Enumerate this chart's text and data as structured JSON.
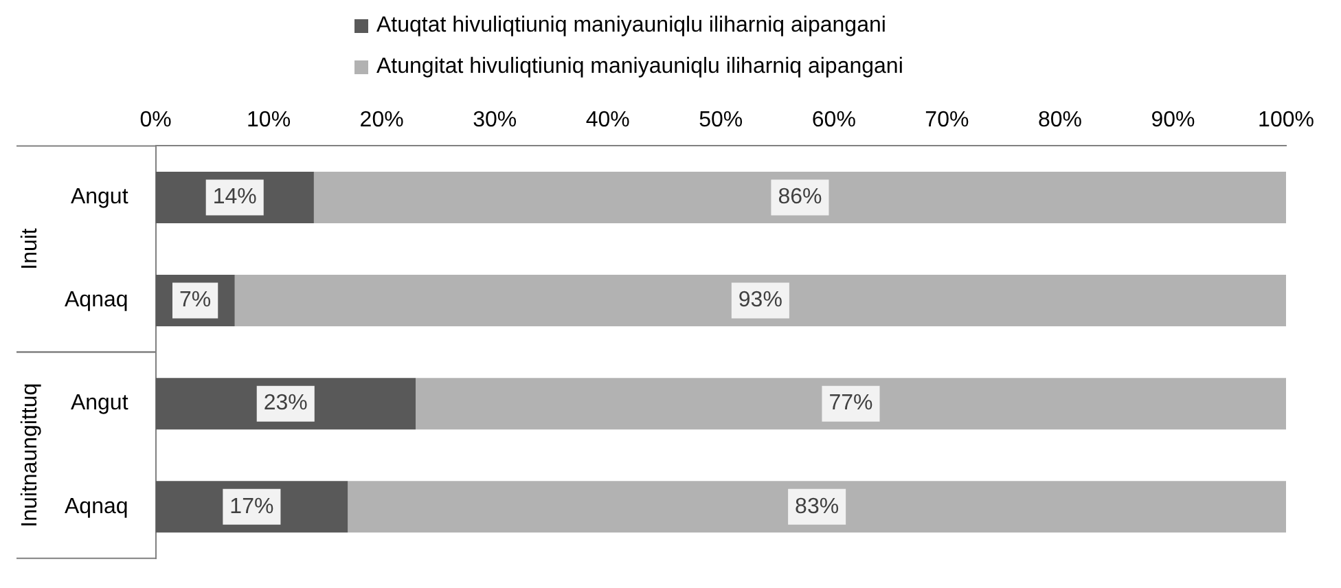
{
  "chart_data": {
    "type": "bar",
    "orientation": "horizontal",
    "stacked": true,
    "categories": [
      "Angut",
      "Aqnaq",
      "Angut",
      "Aqnaq"
    ],
    "annotations": [
      "Inuit",
      "Inuitnaungittuq"
    ],
    "series": [
      {
        "name": "Atuqtat hivuliqtiuniq maniyauniqlu iliharniq aipangani",
        "color": "#595959",
        "values": [
          14,
          7,
          23,
          17
        ],
        "value_labels": [
          "14%",
          "7%",
          "23%",
          "17%"
        ]
      },
      {
        "name": "Atungitat hivuliqtiuniq maniyauniqlu iliharniq aipangani",
        "color": "#b2b2b2",
        "values": [
          86,
          93,
          77,
          83
        ],
        "value_labels": [
          "86%",
          "93%",
          "77%",
          "83%"
        ]
      }
    ],
    "xlim": [
      0,
      100
    ],
    "xticks": [
      {
        "value": 0,
        "label": "0%"
      },
      {
        "value": 10,
        "label": "10%"
      },
      {
        "value": 20,
        "label": "20%"
      },
      {
        "value": 30,
        "label": "30%"
      },
      {
        "value": 40,
        "label": "40%"
      },
      {
        "value": 50,
        "label": "50%"
      },
      {
        "value": 60,
        "label": "60%"
      },
      {
        "value": 70,
        "label": "70%"
      },
      {
        "value": 80,
        "label": "80%"
      },
      {
        "value": 90,
        "label": "90%"
      },
      {
        "value": 100,
        "label": "100%"
      }
    ],
    "grid": false,
    "legend": "top"
  }
}
